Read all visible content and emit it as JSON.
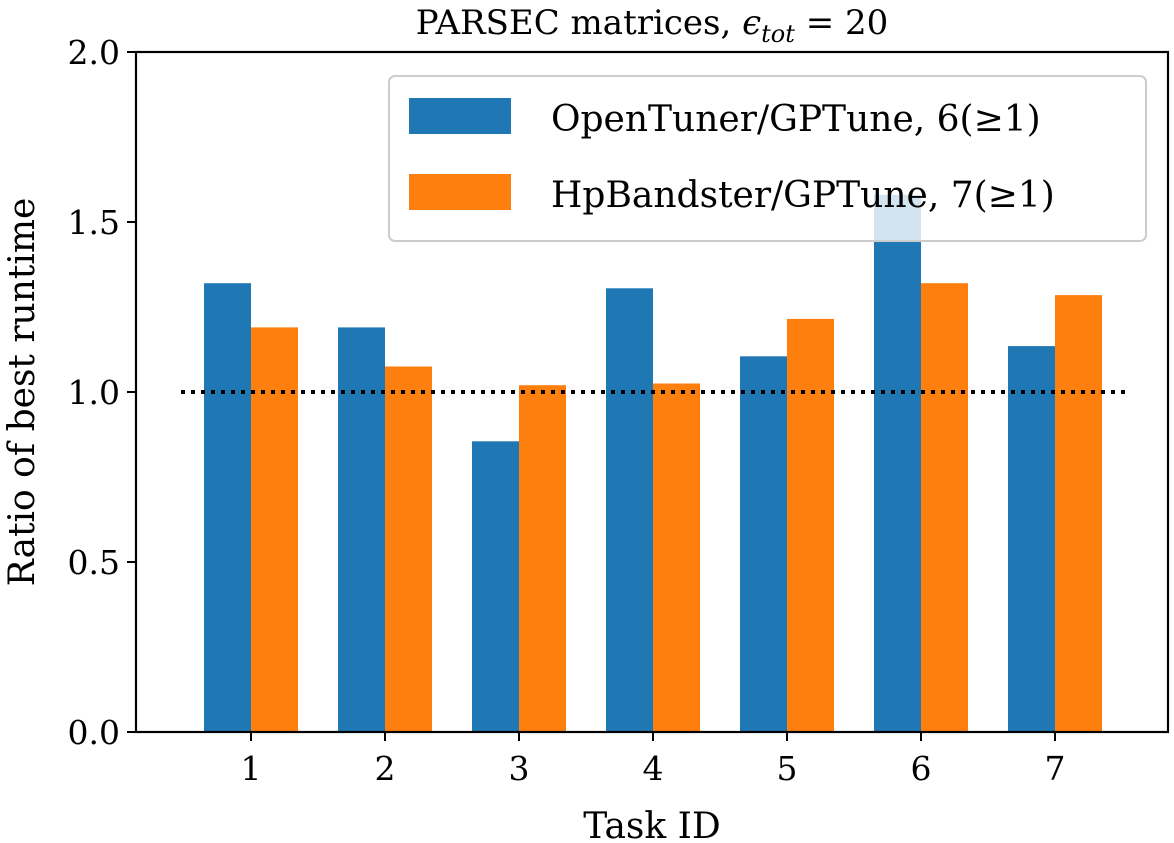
{
  "chart_data": {
    "type": "bar",
    "title": {
      "prefix": "PARSEC matrices, ",
      "symbol": "ϵ",
      "subscript": "tot",
      "suffix": " = 20"
    },
    "xlabel": "Task ID",
    "ylabel": "Ratio of best runtime",
    "categories": [
      "1",
      "2",
      "3",
      "4",
      "5",
      "6",
      "7"
    ],
    "ylim": [
      0,
      2.0
    ],
    "yticks": [
      0.0,
      0.5,
      1.0,
      1.5,
      2.0
    ],
    "ytick_labels": [
      "0.0",
      "0.5",
      "1.0",
      "1.5",
      "2.0"
    ],
    "series": [
      {
        "name": "OpenTuner/GPTune, 6(≥1)",
        "color": "#1f77b4",
        "values": [
          1.32,
          1.19,
          0.855,
          1.305,
          1.105,
          1.58,
          1.135
        ]
      },
      {
        "name": "HpBandster/GPTune, 7(≥1)",
        "color": "#ff7f0e",
        "values": [
          1.19,
          1.075,
          1.02,
          1.025,
          1.215,
          1.32,
          1.285
        ]
      }
    ],
    "reference_line": {
      "y": 1.0,
      "style": "dotted",
      "color": "#000000"
    },
    "legend_position": "top-right",
    "grid": false
  }
}
